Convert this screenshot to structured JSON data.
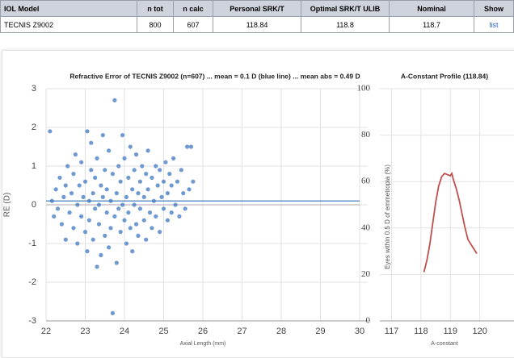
{
  "table": {
    "header": [
      "IOL Model",
      "n tot",
      "n calc",
      "Personal SRK/T",
      "Optimal SRK/T ULIB",
      "Nominal",
      "Show"
    ],
    "rows": [
      [
        "TECNIS Z9002",
        800,
        607,
        118.84,
        118.8,
        118.7,
        "list"
      ]
    ]
  },
  "chart_data": [
    {
      "type": "scatter",
      "title": "Refractive Error of TECNIS Z9002 (n=607) ... mean = 0.1 D (blue line) ... mean abs = 0.49 D",
      "x_label": "Axial Length (mm)",
      "y_label": "RE (D)",
      "xlim": [
        22,
        30
      ],
      "ylim": [
        -3,
        3
      ],
      "xticks": [
        22,
        23,
        24,
        25,
        26,
        27,
        28,
        29,
        30
      ],
      "yticks": [
        -3,
        -2,
        -1,
        0,
        1,
        2,
        3
      ],
      "grid": true,
      "color": "#3f78c2",
      "mean": 0.1,
      "mean_color": "#2f6fb5",
      "x": [
        22.1,
        22.15,
        22.2,
        22.25,
        22.3,
        22.35,
        22.4,
        22.45,
        22.5,
        22.5,
        22.55,
        22.6,
        22.65,
        22.7,
        22.7,
        22.75,
        22.8,
        22.8,
        22.85,
        22.9,
        22.9,
        22.95,
        23.0,
        23.0,
        23.05,
        23.05,
        23.1,
        23.1,
        23.15,
        23.15,
        23.2,
        23.2,
        23.25,
        23.25,
        23.3,
        23.3,
        23.35,
        23.35,
        23.4,
        23.4,
        23.45,
        23.45,
        23.5,
        23.5,
        23.55,
        23.55,
        23.6,
        23.6,
        23.65,
        23.65,
        23.7,
        23.7,
        23.75,
        23.75,
        23.8,
        23.8,
        23.85,
        23.85,
        23.9,
        23.9,
        23.95,
        23.95,
        24.0,
        24.0,
        24.05,
        24.05,
        24.1,
        24.1,
        24.15,
        24.15,
        24.2,
        24.2,
        24.25,
        24.25,
        24.3,
        24.3,
        24.35,
        24.35,
        24.4,
        24.4,
        24.45,
        24.5,
        24.5,
        24.55,
        24.55,
        24.6,
        24.6,
        24.65,
        24.7,
        24.7,
        24.75,
        24.8,
        24.8,
        24.85,
        24.9,
        24.9,
        24.95,
        25.0,
        25.0,
        25.05,
        25.1,
        25.1,
        25.15,
        25.2,
        25.2,
        25.25,
        25.3,
        25.35,
        25.4,
        25.45,
        25.5,
        25.55,
        25.6,
        25.65,
        25.7,
        25.75
      ],
      "y": [
        1.9,
        0.1,
        -0.3,
        0.4,
        -0.1,
        0.7,
        -0.5,
        0.2,
        -0.9,
        0.5,
        1.0,
        -0.2,
        0.3,
        -0.6,
        0.8,
        1.3,
        0.0,
        -1.0,
        0.5,
        -0.3,
        1.1,
        0.2,
        -0.7,
        0.6,
        1.9,
        -1.2,
        0.1,
        -0.4,
        0.9,
        1.6,
        -0.9,
        0.3,
        -0.1,
        0.7,
        -1.6,
        1.2,
        0.0,
        -0.5,
        0.5,
        -1.3,
        1.8,
        0.2,
        -0.8,
        0.9,
        -0.2,
        0.4,
        1.4,
        -1.1,
        0.1,
        -0.6,
        -2.8,
        0.8,
        2.7,
        -0.3,
        0.3,
        -1.5,
        1.0,
        -0.1,
        -0.7,
        0.6,
        1.8,
        0.0,
        -0.4,
        1.2,
        0.2,
        -1.0,
        0.7,
        -0.2,
        1.5,
        -0.6,
        0.4,
        -1.2,
        0.9,
        0.0,
        -0.5,
        1.3,
        0.3,
        -0.8,
        0.6,
        -0.1,
        1.0,
        -0.4,
        0.2,
        0.8,
        -0.9,
        0.4,
        1.4,
        -0.2,
        0.7,
        -0.6,
        0.1,
        1.0,
        -0.3,
        0.5,
        -0.7,
        0.9,
        0.2,
        -0.1,
        0.6,
        1.1,
        -0.4,
        0.3,
        0.8,
        -0.2,
        0.5,
        1.2,
        0.0,
        0.6,
        -0.3,
        0.9,
        0.3,
        -0.1,
        1.5,
        0.4,
        1.5,
        0.6
      ]
    },
    {
      "type": "line",
      "title": "A-Constant Profile (118.84)",
      "x_label": "A-constant",
      "y_label": "Eyes within 0.5 D of emmetropia (%)",
      "xlim": [
        116.6,
        121
      ],
      "ylim": [
        0,
        100
      ],
      "xticks": [
        117,
        118,
        119,
        120
      ],
      "yticks": [
        0,
        20,
        40,
        60,
        80,
        100
      ],
      "grid": true,
      "color": "#c0504d",
      "x": [
        118.1,
        118.2,
        118.3,
        118.4,
        118.5,
        118.6,
        118.7,
        118.8,
        118.9,
        119.0,
        119.05,
        119.1,
        119.2,
        119.3,
        119.4,
        119.5,
        119.6,
        119.75,
        119.9
      ],
      "y": [
        21,
        26,
        33,
        42,
        51,
        58,
        62,
        63.5,
        63,
        62.5,
        63.5,
        61,
        57,
        52,
        46,
        40,
        35,
        32,
        29
      ]
    }
  ]
}
